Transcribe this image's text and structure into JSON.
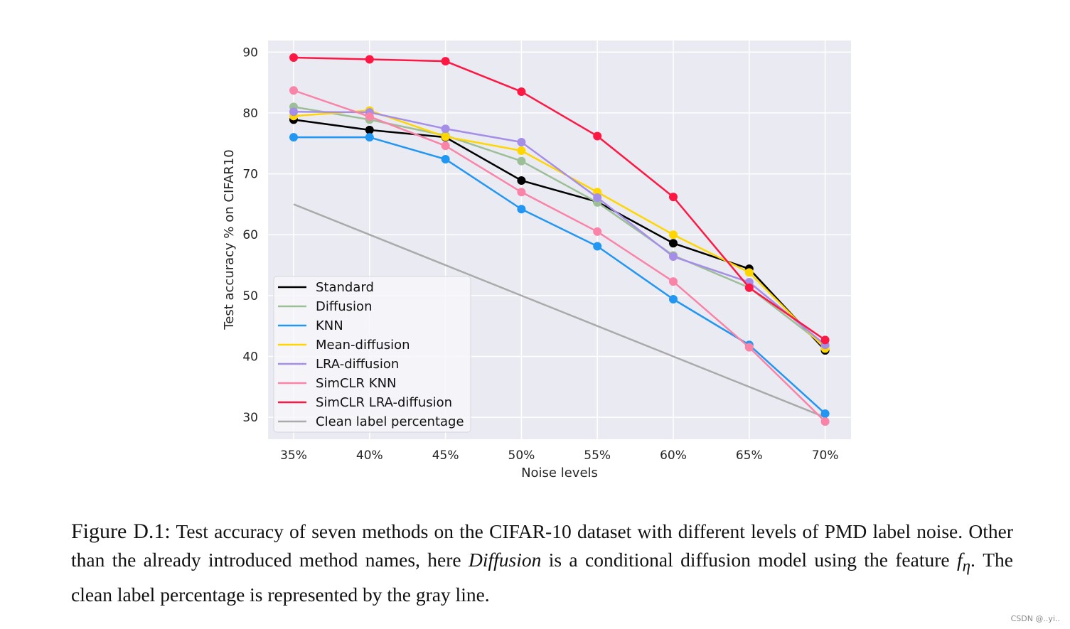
{
  "chart_data": {
    "type": "line",
    "xlabel": "Noise levels",
    "ylabel": "Test accuracy % on CIFAR10",
    "categories": [
      "35%",
      "40%",
      "45%",
      "50%",
      "55%",
      "60%",
      "65%",
      "70%"
    ],
    "yticks": [
      30,
      40,
      50,
      60,
      70,
      80,
      90
    ],
    "ylim": [
      26.4,
      91.9
    ],
    "grid": true,
    "legend_position": "lower-left",
    "background": "#eaeaf2",
    "series": [
      {
        "name": "Standard",
        "color": "#000000",
        "markers": true,
        "values": [
          78.9,
          77.2,
          76.0,
          68.9,
          65.4,
          58.6,
          54.4,
          41.0
        ]
      },
      {
        "name": "Diffusion",
        "color": "#9dbf97",
        "markers": true,
        "values": [
          81.0,
          78.9,
          76.3,
          72.1,
          65.3,
          56.6,
          51.3,
          41.7
        ]
      },
      {
        "name": "KNN",
        "color": "#2196f3",
        "markers": true,
        "values": [
          76.0,
          76.0,
          72.4,
          64.2,
          58.1,
          49.4,
          41.9,
          30.6
        ]
      },
      {
        "name": "Mean-diffusion",
        "color": "#ffd600",
        "markers": true,
        "values": [
          79.5,
          80.4,
          76.1,
          73.8,
          67.0,
          60.0,
          53.8,
          41.3
        ]
      },
      {
        "name": "LRA-diffusion",
        "color": "#a58ee8",
        "markers": true,
        "values": [
          80.2,
          80.1,
          77.4,
          75.2,
          66.1,
          56.4,
          52.2,
          41.9
        ]
      },
      {
        "name": "SimCLR KNN",
        "color": "#f984a8",
        "markers": true,
        "values": [
          83.7,
          79.4,
          74.6,
          67.0,
          60.5,
          52.3,
          41.5,
          29.3
        ]
      },
      {
        "name": "SimCLR LRA-diffusion",
        "color": "#ff1744",
        "markers": true,
        "values": [
          89.1,
          88.8,
          88.5,
          83.5,
          76.2,
          66.2,
          51.3,
          42.7
        ]
      },
      {
        "name": "Clean label percentage",
        "color": "#aaaaaa",
        "markers": false,
        "values": [
          65,
          60,
          55,
          50,
          45,
          40,
          35,
          30
        ]
      }
    ]
  },
  "caption": {
    "label": "Figure D.1:",
    "text1": " Test accuracy of seven methods on the CIFAR-10 dataset with different levels of PMD label noise. Other than the already introduced method names, here ",
    "italic": "Diffusion",
    "text2": " is a conditional diffusion model using the feature ",
    "math": "f",
    "math_sub": "η",
    "text3": ". The clean label percentage is represented by the gray line."
  },
  "watermark": "CSDN @..yi.."
}
